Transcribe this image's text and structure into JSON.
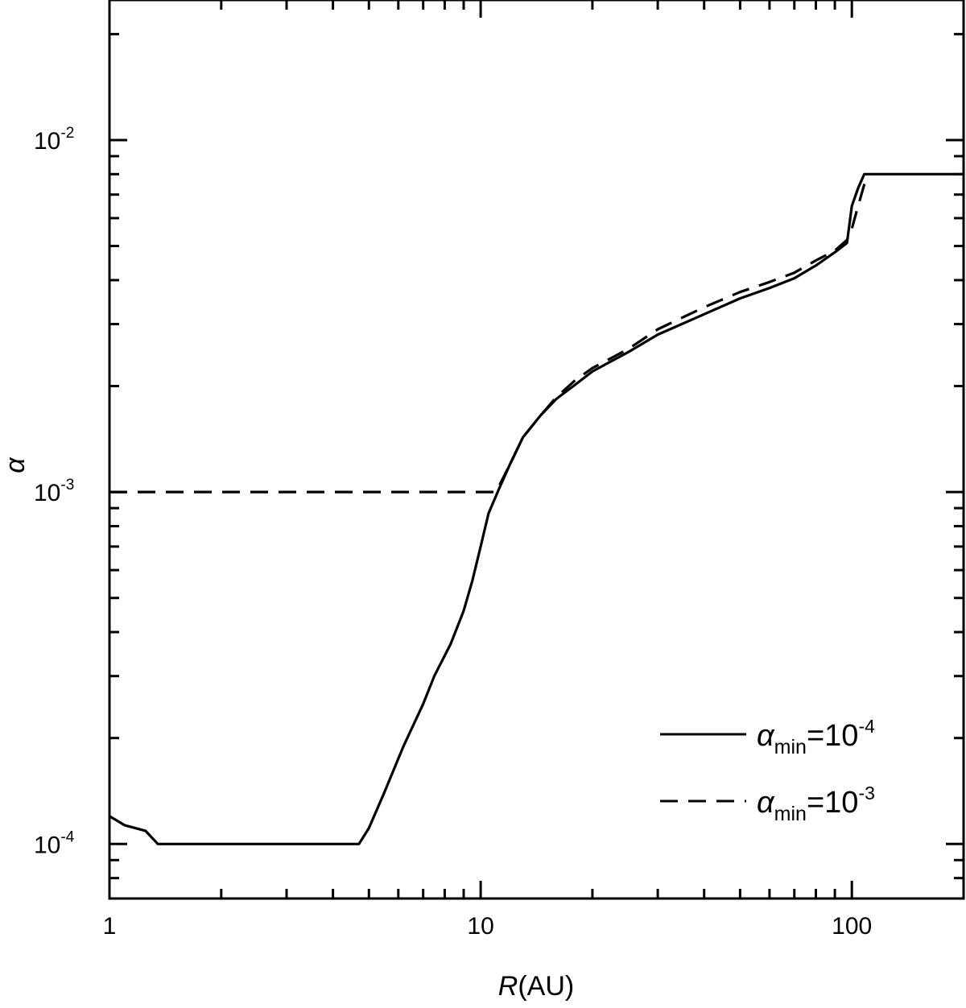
{
  "chart_data": {
    "type": "line",
    "xlabel_italic": "R",
    "xlabel_rest": "(AU)",
    "ylabel": "α",
    "x_scale": "log",
    "y_scale": "log",
    "xlim": [
      1,
      200
    ],
    "ylim": [
      7e-05,
      0.025
    ],
    "x_ticks": [
      {
        "value": 1,
        "label": "1"
      },
      {
        "value": 10,
        "label": "10"
      },
      {
        "value": 100,
        "label": "100"
      }
    ],
    "y_ticks": [
      {
        "value": 0.0001,
        "base": "10",
        "exp": "-4"
      },
      {
        "value": 0.001,
        "base": "10",
        "exp": "-3"
      },
      {
        "value": 0.01,
        "base": "10",
        "exp": "-2"
      }
    ],
    "grid": false,
    "legend_position": "bottom-right",
    "series": [
      {
        "legend_base": "α",
        "legend_sub": "min",
        "legend_eq": "=10",
        "legend_exp": "-4",
        "style": "solid",
        "points": [
          [
            1.0,
            0.00012
          ],
          [
            1.1,
            0.000113
          ],
          [
            1.25,
            0.000109
          ],
          [
            1.35,
            0.0001
          ],
          [
            4.7,
            0.0001
          ],
          [
            5.0,
            0.000111
          ],
          [
            5.5,
            0.00014
          ],
          [
            6.2,
            0.00019
          ],
          [
            7.0,
            0.00025
          ],
          [
            7.5,
            0.0003
          ],
          [
            8.3,
            0.00037
          ],
          [
            9.0,
            0.00046
          ],
          [
            9.5,
            0.00056
          ],
          [
            10.0,
            0.0007
          ],
          [
            10.5,
            0.00087
          ],
          [
            11.2,
            0.00102
          ],
          [
            12.0,
            0.0012
          ],
          [
            13.0,
            0.00143
          ],
          [
            14.5,
            0.00165
          ],
          [
            16.0,
            0.00184
          ],
          [
            18.0,
            0.00202
          ],
          [
            20.0,
            0.0022
          ],
          [
            25.0,
            0.0025
          ],
          [
            30.0,
            0.0028
          ],
          [
            40.0,
            0.0032
          ],
          [
            50.0,
            0.00355
          ],
          [
            60.0,
            0.0038
          ],
          [
            70.0,
            0.00405
          ],
          [
            80.0,
            0.0044
          ],
          [
            90.0,
            0.0048
          ],
          [
            97.0,
            0.0051
          ],
          [
            100.0,
            0.0065
          ],
          [
            104.0,
            0.0073
          ],
          [
            108.0,
            0.008
          ],
          [
            200.0,
            0.008
          ]
        ]
      },
      {
        "legend_base": "α",
        "legend_sub": "min",
        "legend_eq": "=10",
        "legend_exp": "-3",
        "style": "dashed",
        "points": [
          [
            1.0,
            0.001
          ],
          [
            11.0,
            0.001
          ],
          [
            12.0,
            0.0012
          ],
          [
            13.0,
            0.00143
          ],
          [
            14.5,
            0.00165
          ],
          [
            16.0,
            0.00186
          ],
          [
            18.0,
            0.00208
          ],
          [
            20.0,
            0.00225
          ],
          [
            25.0,
            0.00255
          ],
          [
            30.0,
            0.0029
          ],
          [
            40.0,
            0.00335
          ],
          [
            50.0,
            0.0037
          ],
          [
            60.0,
            0.00395
          ],
          [
            70.0,
            0.0042
          ],
          [
            80.0,
            0.00455
          ],
          [
            90.0,
            0.00485
          ],
          [
            97.0,
            0.0052
          ],
          [
            100.0,
            0.0056
          ],
          [
            104.0,
            0.0065
          ],
          [
            110.0,
            0.008
          ]
        ]
      }
    ]
  }
}
